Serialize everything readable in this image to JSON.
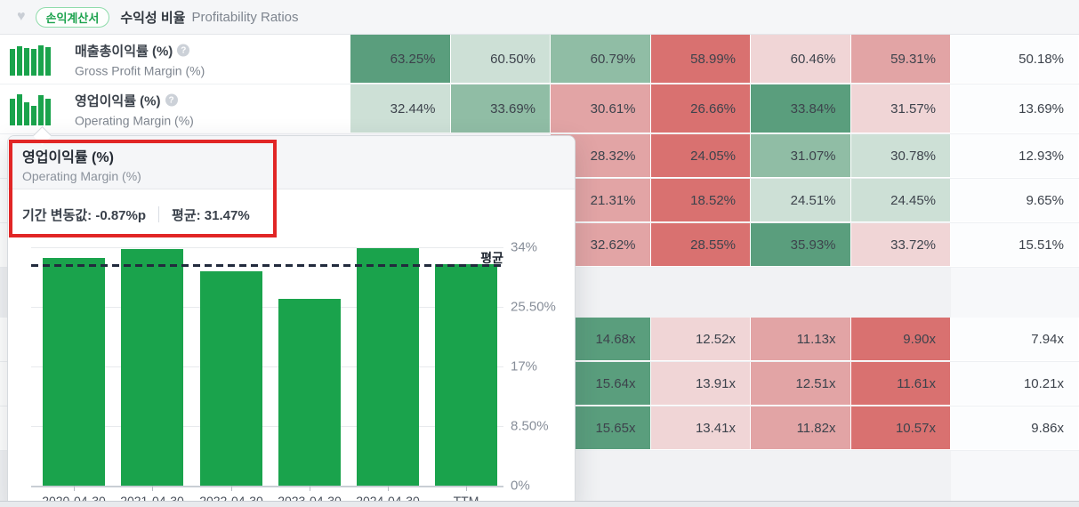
{
  "header": {
    "badge": "손익계산서",
    "title_ko": "수익성 비율",
    "title_en": "Profitability Ratios"
  },
  "colors": {
    "heat": {
      "g3": "#5a9e7d",
      "g2": "#90bda5",
      "g1": "#cde0d6",
      "r1": "#f0d5d6",
      "r2": "#e2a4a5",
      "r3": "#d97170",
      "plain": "#fcfdfe"
    },
    "bar_green": "#1aa34c",
    "badge_green": "#1ba24d",
    "annotation_red": "#e12626",
    "avg_line_dark": "#222b3d"
  },
  "table": {
    "rows": [
      {
        "label_ko": "매출총이익률 (%)",
        "label_en": "Gross Profit Margin (%)",
        "cells": [
          {
            "value": "63.25%",
            "heat": "g3"
          },
          {
            "value": "60.50%",
            "heat": "g1"
          },
          {
            "value": "60.79%",
            "heat": "g2"
          },
          {
            "value": "58.99%",
            "heat": "r3"
          },
          {
            "value": "60.46%",
            "heat": "r1"
          },
          {
            "value": "59.31%",
            "heat": "r2"
          },
          {
            "value": "50.18%",
            "heat": "plain"
          }
        ]
      },
      {
        "label_ko": "영업이익률 (%)",
        "label_en": "Operating Margin (%)",
        "cells": [
          {
            "value": "32.44%",
            "heat": "g1"
          },
          {
            "value": "33.69%",
            "heat": "g2"
          },
          {
            "value": "30.61%",
            "heat": "r2"
          },
          {
            "value": "26.66%",
            "heat": "r3"
          },
          {
            "value": "33.84%",
            "heat": "g3"
          },
          {
            "value": "31.57%",
            "heat": "r1"
          },
          {
            "value": "13.69%",
            "heat": "plain"
          }
        ]
      },
      {
        "cells": [
          {
            "value": "28.32%",
            "heat": "r2"
          },
          {
            "value": "24.05%",
            "heat": "r3"
          },
          {
            "value": "31.07%",
            "heat": "g2"
          },
          {
            "value": "30.78%",
            "heat": "g1"
          },
          {
            "value": "12.93%",
            "heat": "plain"
          }
        ]
      },
      {
        "cells": [
          {
            "value": "21.31%",
            "heat": "r2"
          },
          {
            "value": "18.52%",
            "heat": "r3"
          },
          {
            "value": "24.51%",
            "heat": "g1"
          },
          {
            "value": "24.45%",
            "heat": "g1"
          },
          {
            "value": "9.65%",
            "heat": "plain"
          }
        ]
      },
      {
        "cells": [
          {
            "value": "32.62%",
            "heat": "r2"
          },
          {
            "value": "28.55%",
            "heat": "r3"
          },
          {
            "value": "35.93%",
            "heat": "g3"
          },
          {
            "value": "33.72%",
            "heat": "r1"
          },
          {
            "value": "15.51%",
            "heat": "plain"
          }
        ]
      },
      {
        "cells": [
          {
            "value": "14.68x",
            "heat": "g3"
          },
          {
            "value": "12.52x",
            "heat": "r1"
          },
          {
            "value": "11.13x",
            "heat": "r2"
          },
          {
            "value": "9.90x",
            "heat": "r3"
          },
          {
            "value": "7.94x",
            "heat": "plain"
          }
        ]
      },
      {
        "cells": [
          {
            "value": "15.64x",
            "heat": "g3"
          },
          {
            "value": "13.91x",
            "heat": "r1"
          },
          {
            "value": "12.51x",
            "heat": "r2"
          },
          {
            "value": "11.61x",
            "heat": "r3"
          },
          {
            "value": "10.21x",
            "heat": "plain"
          }
        ]
      },
      {
        "cells": [
          {
            "value": "15.65x",
            "heat": "g3"
          },
          {
            "value": "13.41x",
            "heat": "r1"
          },
          {
            "value": "11.82x",
            "heat": "r2"
          },
          {
            "value": "10.57x",
            "heat": "r3"
          },
          {
            "value": "9.86x",
            "heat": "plain"
          }
        ]
      }
    ]
  },
  "popup": {
    "title_ko": "영업이익률 (%)",
    "title_en": "Operating Margin (%)",
    "stat_change": "기간 변동값: -0.87%p",
    "stat_average": "평균: 31.47%"
  },
  "chart_data": {
    "type": "bar",
    "title": "영업이익률 (%) Operating Margin (%)",
    "categories": [
      "2020-04-30",
      "2021-04-30",
      "2022-04-30",
      "2023-04-30",
      "2024-04-30",
      "TTM"
    ],
    "values": [
      32.44,
      33.69,
      30.61,
      26.66,
      33.84,
      31.57
    ],
    "average": 31.47,
    "average_label": "평균",
    "y_ticks": [
      "0%",
      "8.50%",
      "17%",
      "25.50%",
      "34%"
    ],
    "ylim": [
      0,
      34
    ],
    "xlabel": "",
    "ylabel": "",
    "grid": true,
    "bar_color": "#1aa34c"
  }
}
